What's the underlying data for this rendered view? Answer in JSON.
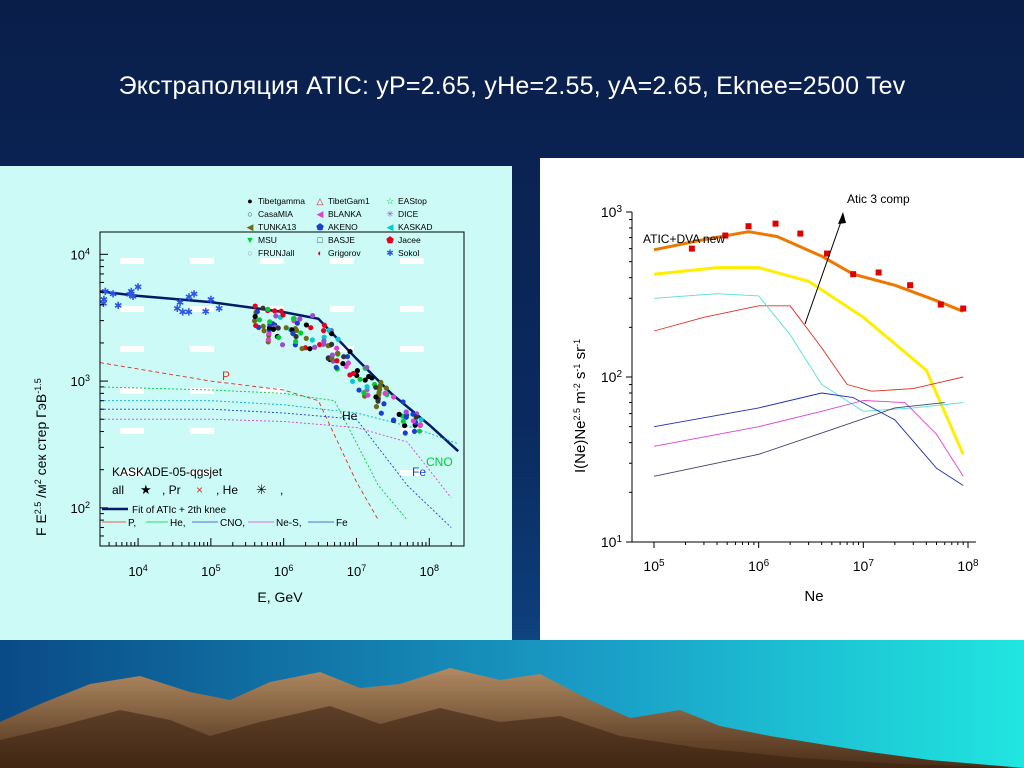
{
  "slide": {
    "title": "Экстраполяция ATIC: yP=2.65, yHe=2.55, yA=2.65, Eknee=2500 Tev",
    "colors": {
      "background": "#0a2a5e",
      "left_panel": "#ccfbf7",
      "right_panel": "#ffffff"
    }
  },
  "chart_data": [
    {
      "type": "scatter",
      "panel": "left",
      "xlabel": "E, GeV",
      "ylabel_parts": [
        "F E",
        "2.5",
        " /м",
        "2",
        " сек стер ГэВ",
        "-1.5"
      ],
      "x_scale": "log",
      "y_scale": "log",
      "xlim": [
        3000,
        300000000
      ],
      "ylim": [
        50,
        15000
      ],
      "x_ticks": [
        {
          "base": "10",
          "exp": "4"
        },
        {
          "base": "10",
          "exp": "5"
        },
        {
          "base": "10",
          "exp": "6"
        },
        {
          "base": "10",
          "exp": "7"
        },
        {
          "base": "10",
          "exp": "8"
        }
      ],
      "y_ticks": [
        {
          "base": "10",
          "exp": "2"
        },
        {
          "base": "10",
          "exp": "3"
        },
        {
          "base": "10",
          "exp": "4"
        }
      ],
      "legend_items": [
        {
          "name": "Tibetgamma",
          "marker": "●",
          "color": "#000000"
        },
        {
          "name": "TibetGam1",
          "marker": "△",
          "color": "#e8001e"
        },
        {
          "name": "EAStop",
          "marker": "☆",
          "color": "#00cc33"
        },
        {
          "name": "CasaMIA",
          "marker": "○",
          "color": "#333333"
        },
        {
          "name": "BLANKA",
          "marker": "◀",
          "color": "#e040d0"
        },
        {
          "name": "DICE",
          "marker": "✳",
          "color": "#9b4ed0"
        },
        {
          "name": "TUNKA13",
          "marker": "◀",
          "color": "#6b6b1a"
        },
        {
          "name": "AKENO",
          "marker": "⬟",
          "color": "#1a3fd0"
        },
        {
          "name": "KASKAD",
          "marker": "◀",
          "color": "#00cccc"
        },
        {
          "name": "MSU",
          "marker": "▼",
          "color": "#00cc33"
        },
        {
          "name": "BASJE",
          "marker": "□",
          "color": "#333333"
        },
        {
          "name": "Jacee",
          "marker": "⬟",
          "color": "#e8001e"
        },
        {
          "name": "FRUNJall",
          "marker": "○",
          "color": "#999999"
        },
        {
          "name": "Grigorov",
          "marker": "◐",
          "color": "#e8001e"
        },
        {
          "name": "Sokol",
          "marker": "✱",
          "color": "#2a55e8"
        }
      ],
      "annotations": [
        "P",
        "He",
        "CNO",
        "Fe"
      ],
      "kaskade": {
        "title": "KASKADE-05-qgsjet",
        "row": [
          "all",
          "★",
          ", Pr",
          "×",
          ", He",
          "✳",
          ","
        ]
      },
      "fit_legend": {
        "main": "Fit of ATIc + 2th knee",
        "row": [
          "P,",
          "He,",
          "CNO,",
          "Ne-S,",
          "Fe"
        ]
      },
      "series": [
        {
          "name": "Fit of ATIc + 2th knee",
          "color": "#001a66",
          "points": [
            [
              3000,
              5100
            ],
            [
              10000,
              4700
            ],
            [
              100000,
              4200
            ],
            [
              1000000,
              3500
            ],
            [
              3000000,
              3100
            ],
            [
              10000000,
              1500
            ],
            [
              30000000,
              800
            ],
            [
              100000000,
              450
            ],
            [
              250000000,
              280
            ]
          ]
        },
        {
          "name": "P",
          "color": "#e03020",
          "points": [
            [
              3000,
              1400
            ],
            [
              100000,
              1000
            ],
            [
              1000000,
              850
            ],
            [
              3000000,
              700
            ],
            [
              10000000,
              160
            ],
            [
              20000000,
              80
            ]
          ]
        },
        {
          "name": "He",
          "color": "#00cc33",
          "points": [
            [
              3000,
              900
            ],
            [
              100000,
              850
            ],
            [
              1000000,
              800
            ],
            [
              5000000,
              700
            ],
            [
              20000000,
              150
            ],
            [
              50000000,
              80
            ]
          ]
        },
        {
          "name": "CNO",
          "color": "#2040d0",
          "points": [
            [
              3000,
              600
            ],
            [
              100000,
              600
            ],
            [
              1000000,
              560
            ],
            [
              10000000,
              500
            ],
            [
              50000000,
              150
            ],
            [
              200000000,
              70
            ]
          ]
        },
        {
          "name": "Ne-S",
          "color": "#e040d0",
          "points": [
            [
              3000,
              500
            ],
            [
              100000,
              500
            ],
            [
              1000000,
              480
            ],
            [
              10000000,
              430
            ],
            [
              50000000,
              330
            ],
            [
              200000000,
              120
            ]
          ]
        },
        {
          "name": "Fe",
          "color": "#00aacc",
          "points": [
            [
              3000,
              700
            ],
            [
              100000,
              700
            ],
            [
              1000000,
              650
            ],
            [
              10000000,
              560
            ],
            [
              60000000,
              430
            ],
            [
              250000000,
              320
            ]
          ]
        }
      ]
    },
    {
      "type": "line",
      "panel": "right",
      "xlabel": "Ne",
      "ylabel_parts": [
        "I(Ne)Ne",
        "2.5",
        " m",
        "-2",
        " s",
        "-1",
        " sr",
        "-1"
      ],
      "x_scale": "log",
      "y_scale": "log",
      "xlim": [
        100000,
        100000000
      ],
      "ylim": [
        10,
        1000
      ],
      "x_ticks": [
        {
          "base": "10",
          "exp": "5"
        },
        {
          "base": "10",
          "exp": "6"
        },
        {
          "base": "10",
          "exp": "7"
        },
        {
          "base": "10",
          "exp": "8"
        }
      ],
      "y_ticks": [
        {
          "base": "10",
          "exp": "1"
        },
        {
          "base": "10",
          "exp": "2"
        },
        {
          "base": "10",
          "exp": "3"
        }
      ],
      "annotations": [
        "ATIC+DVA new",
        "Atic 3 comp"
      ],
      "data_points": {
        "color": "#e00000",
        "points": [
          [
            230000,
            600,
            12
          ],
          [
            480000,
            720,
            15
          ],
          [
            800000,
            820,
            18
          ],
          [
            1450000,
            850,
            20
          ],
          [
            2500000,
            740,
            20
          ],
          [
            4500000,
            560,
            14
          ],
          [
            8000000,
            420,
            12
          ],
          [
            14000000,
            430,
            16
          ],
          [
            28000000,
            360,
            14
          ],
          [
            55000000,
            275,
            10
          ],
          [
            90000000,
            260,
            11
          ]
        ]
      },
      "series": [
        {
          "name": "Atic 3 comp",
          "color": "#ee7700",
          "points": [
            [
              100000,
              590
            ],
            [
              300000,
              680
            ],
            [
              800000,
              760
            ],
            [
              1500000,
              710
            ],
            [
              4000000,
              540
            ],
            [
              8000000,
              420
            ],
            [
              20000000,
              360
            ],
            [
              50000000,
              290
            ],
            [
              90000000,
              250
            ]
          ]
        },
        {
          "name": "ATIC+DVA new",
          "color": "#ffee00",
          "points": [
            [
              100000,
              420
            ],
            [
              400000,
              460
            ],
            [
              1000000,
              460
            ],
            [
              3000000,
              380
            ],
            [
              10000000,
              230
            ],
            [
              40000000,
              110
            ],
            [
              90000000,
              34
            ]
          ]
        },
        {
          "name": "",
          "color": "#e03020",
          "points": [
            [
              100000,
              190
            ],
            [
              300000,
              230
            ],
            [
              1000000,
              270
            ],
            [
              2000000,
              270
            ],
            [
              4000000,
              150
            ],
            [
              7000000,
              90
            ],
            [
              12000000,
              82
            ],
            [
              30000000,
              85
            ],
            [
              90000000,
              100
            ]
          ]
        },
        {
          "name": "",
          "color": "#55dddd",
          "points": [
            [
              100000,
              300
            ],
            [
              400000,
              320
            ],
            [
              1000000,
              310
            ],
            [
              2000000,
              180
            ],
            [
              4000000,
              90
            ],
            [
              10000000,
              62
            ],
            [
              30000000,
              65
            ],
            [
              90000000,
              70
            ]
          ]
        },
        {
          "name": "",
          "color": "#2030b0",
          "points": [
            [
              100000,
              50
            ],
            [
              1000000,
              65
            ],
            [
              4000000,
              80
            ],
            [
              8000000,
              75
            ],
            [
              20000000,
              55
            ],
            [
              50000000,
              28
            ],
            [
              90000000,
              22
            ]
          ]
        },
        {
          "name": "",
          "color": "#e040d0",
          "points": [
            [
              100000,
              38
            ],
            [
              1000000,
              50
            ],
            [
              4000000,
              62
            ],
            [
              10000000,
              72
            ],
            [
              25000000,
              70
            ],
            [
              50000000,
              45
            ],
            [
              90000000,
              25
            ]
          ]
        },
        {
          "name": "",
          "color": "#404070",
          "points": [
            [
              100000,
              25
            ],
            [
              1000000,
              34
            ],
            [
              5000000,
              48
            ],
            [
              20000000,
              65
            ],
            [
              60000000,
              70
            ]
          ]
        }
      ]
    }
  ]
}
